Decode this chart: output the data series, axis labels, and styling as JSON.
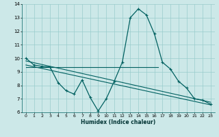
{
  "xlabel": "Humidex (Indice chaleur)",
  "background_color": "#cce8e8",
  "grid_color": "#99cccc",
  "line_color": "#006060",
  "xlim": [
    -0.5,
    23.5
  ],
  "ylim": [
    6,
    14
  ],
  "xticks": [
    0,
    1,
    2,
    3,
    4,
    5,
    6,
    7,
    8,
    9,
    10,
    11,
    12,
    13,
    14,
    15,
    16,
    17,
    18,
    19,
    20,
    21,
    22,
    23
  ],
  "yticks": [
    6,
    7,
    8,
    9,
    10,
    11,
    12,
    13,
    14
  ],
  "line1_x": [
    0,
    1,
    2,
    3,
    4,
    5,
    6,
    7,
    8,
    9,
    10,
    11,
    12,
    13,
    14,
    15,
    16,
    17,
    18,
    19,
    20,
    21,
    22,
    23
  ],
  "line1_y": [
    10.0,
    9.5,
    9.4,
    9.35,
    8.2,
    7.6,
    7.35,
    8.4,
    7.1,
    6.1,
    7.0,
    8.3,
    9.7,
    13.0,
    13.65,
    13.2,
    11.8,
    9.7,
    9.2,
    8.3,
    7.8,
    7.0,
    6.9,
    6.6
  ],
  "line2_x": [
    0,
    16.5
  ],
  "line2_y": [
    9.35,
    9.35
  ],
  "line3_x": [
    0,
    23
  ],
  "line3_y": [
    9.8,
    6.75
  ],
  "line4_x": [
    0,
    23
  ],
  "line4_y": [
    9.5,
    6.55
  ]
}
